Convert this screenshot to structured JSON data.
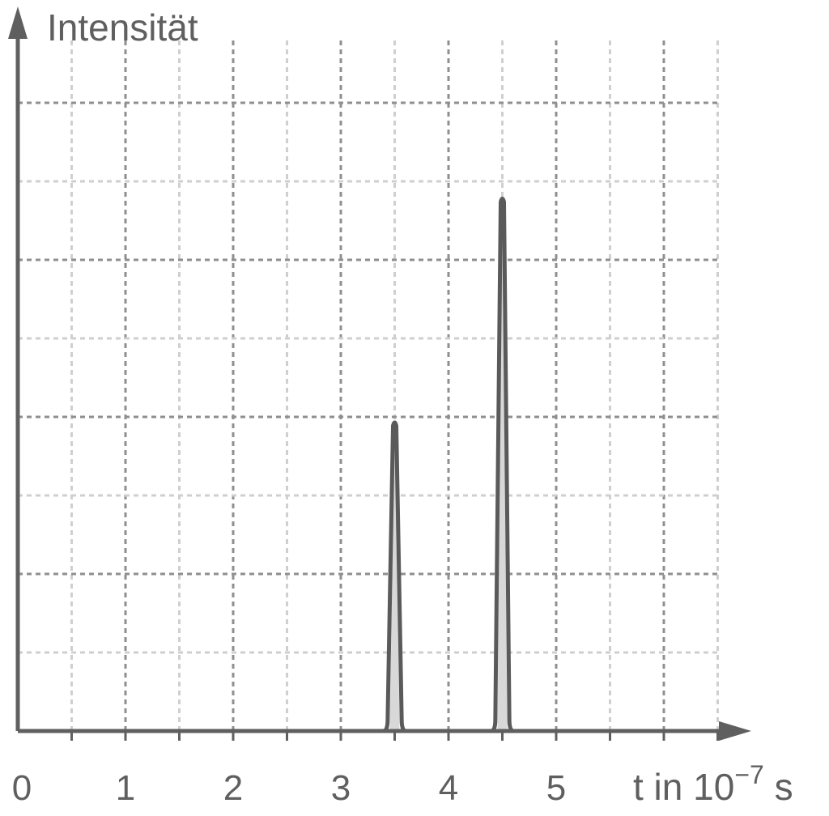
{
  "chart_data": {
    "type": "line",
    "title": "",
    "ylabel": "Intensität",
    "xlabel": {
      "prefix": "t in 10",
      "exponent": "−7",
      "suffix": " s"
    },
    "x_ticks": [
      "0",
      "1",
      "2",
      "3",
      "4",
      "5"
    ],
    "xlim": [
      0,
      6.5
    ],
    "ylim": [
      0,
      8
    ],
    "grid": true,
    "y_tick_labels": false,
    "series": [
      {
        "peaks": [
          {
            "x": 3.5,
            "y": 3.95
          },
          {
            "x": 4.5,
            "y": 6.8
          }
        ]
      }
    ],
    "colors": {
      "axis": "#5f5f5f",
      "curve": "#5a5a5a",
      "grid_major": "#8f8f8f",
      "grid_minor": "#cfcfcf",
      "peak_fill": "#d8d8d8"
    }
  }
}
